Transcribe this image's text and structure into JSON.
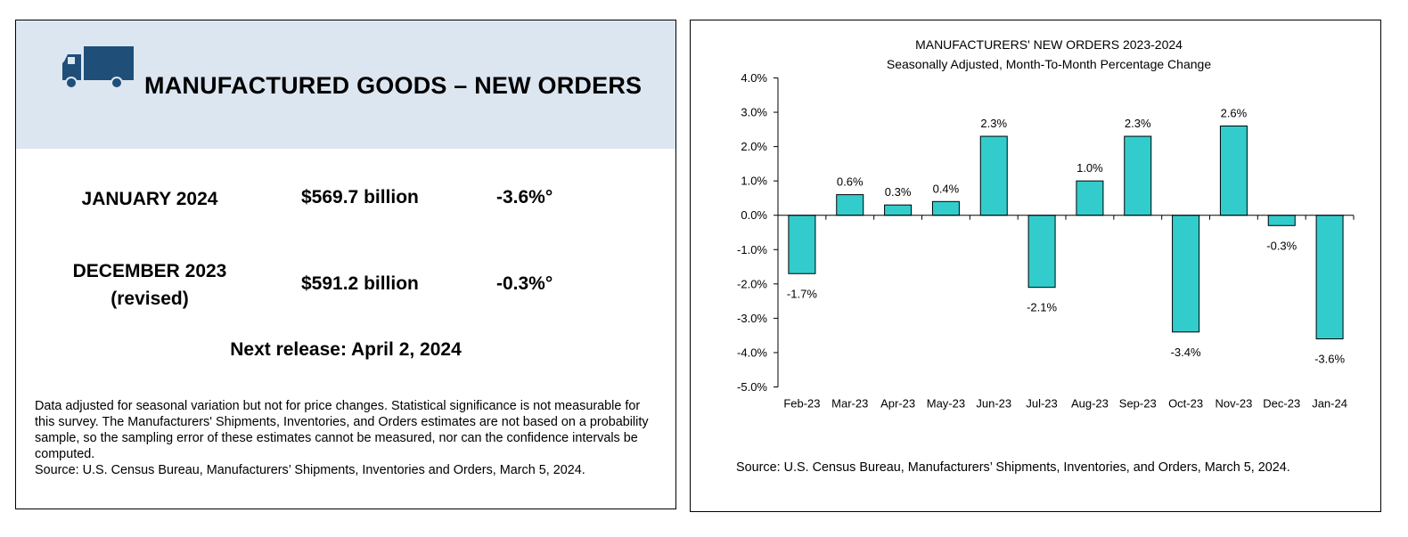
{
  "left_panel": {
    "headline": "MANUFACTURED GOODS – NEW ORDERS",
    "icon": "truck-icon",
    "rows": [
      {
        "label_line1": "JANUARY 2024",
        "label_line2": "",
        "value": "$569.7 billion",
        "change": "-3.6%°"
      },
      {
        "label_line1": "DECEMBER 2023",
        "label_line2": "(revised)",
        "value": "$591.2 billion",
        "change": "-0.3%°"
      }
    ],
    "next_release": "Next release: April 2, 2024",
    "notes": [
      "Data adjusted for seasonal variation but not for price changes. Statistical significance is not measurable for this survey.  The Manufacturers' Shipments, Inventories, and Orders estimates are not based on a probability sample, so the sampling error of these estimates cannot be measured, nor can the confidence intervals be computed.",
      "Source: U.S. Census Bureau, Manufacturers’ Shipments, Inventories and Orders, March 5, 2024."
    ],
    "colors": {
      "banner": "#dce6f1",
      "truck": "#1f4e79"
    }
  },
  "right_panel": {
    "source": "Source: U.S. Census Bureau, Manufacturers’ Shipments, Inventories, and Orders, March 5, 2024."
  },
  "chart_data": {
    "type": "bar",
    "title": "MANUFACTURERS' NEW ORDERS 2023-2024",
    "subtitle": "Seasonally Adjusted,  Month-To-Month Percentage Change",
    "categories": [
      "Feb-23",
      "Mar-23",
      "Apr-23",
      "May-23",
      "Jun-23",
      "Jul-23",
      "Aug-23",
      "Sep-23",
      "Oct-23",
      "Nov-23",
      "Dec-23",
      "Jan-24"
    ],
    "values": [
      -1.7,
      0.6,
      0.3,
      0.4,
      2.3,
      -2.1,
      1.0,
      2.3,
      -3.4,
      2.6,
      -0.3,
      -3.6
    ],
    "data_labels": [
      "-1.7%",
      "0.6%",
      "0.3%",
      "0.4%",
      "2.3%",
      "-2.1%",
      "1.0%",
      "2.3%",
      "-3.4%",
      "2.6%",
      "-0.3%",
      "-3.6%"
    ],
    "ylim": [
      -5.0,
      4.0
    ],
    "yticks": [
      4.0,
      3.0,
      2.0,
      1.0,
      0.0,
      -1.0,
      -2.0,
      -3.0,
      -4.0,
      -5.0
    ],
    "ytick_labels": [
      "4.0%",
      "3.0%",
      "2.0%",
      "1.0%",
      "0.0%",
      "-1.0%",
      "-2.0%",
      "-3.0%",
      "-4.0%",
      "-5.0%"
    ],
    "xlabel": "",
    "ylabel": "",
    "grid": false,
    "legend": "none",
    "bar_color": "#33cccc"
  }
}
